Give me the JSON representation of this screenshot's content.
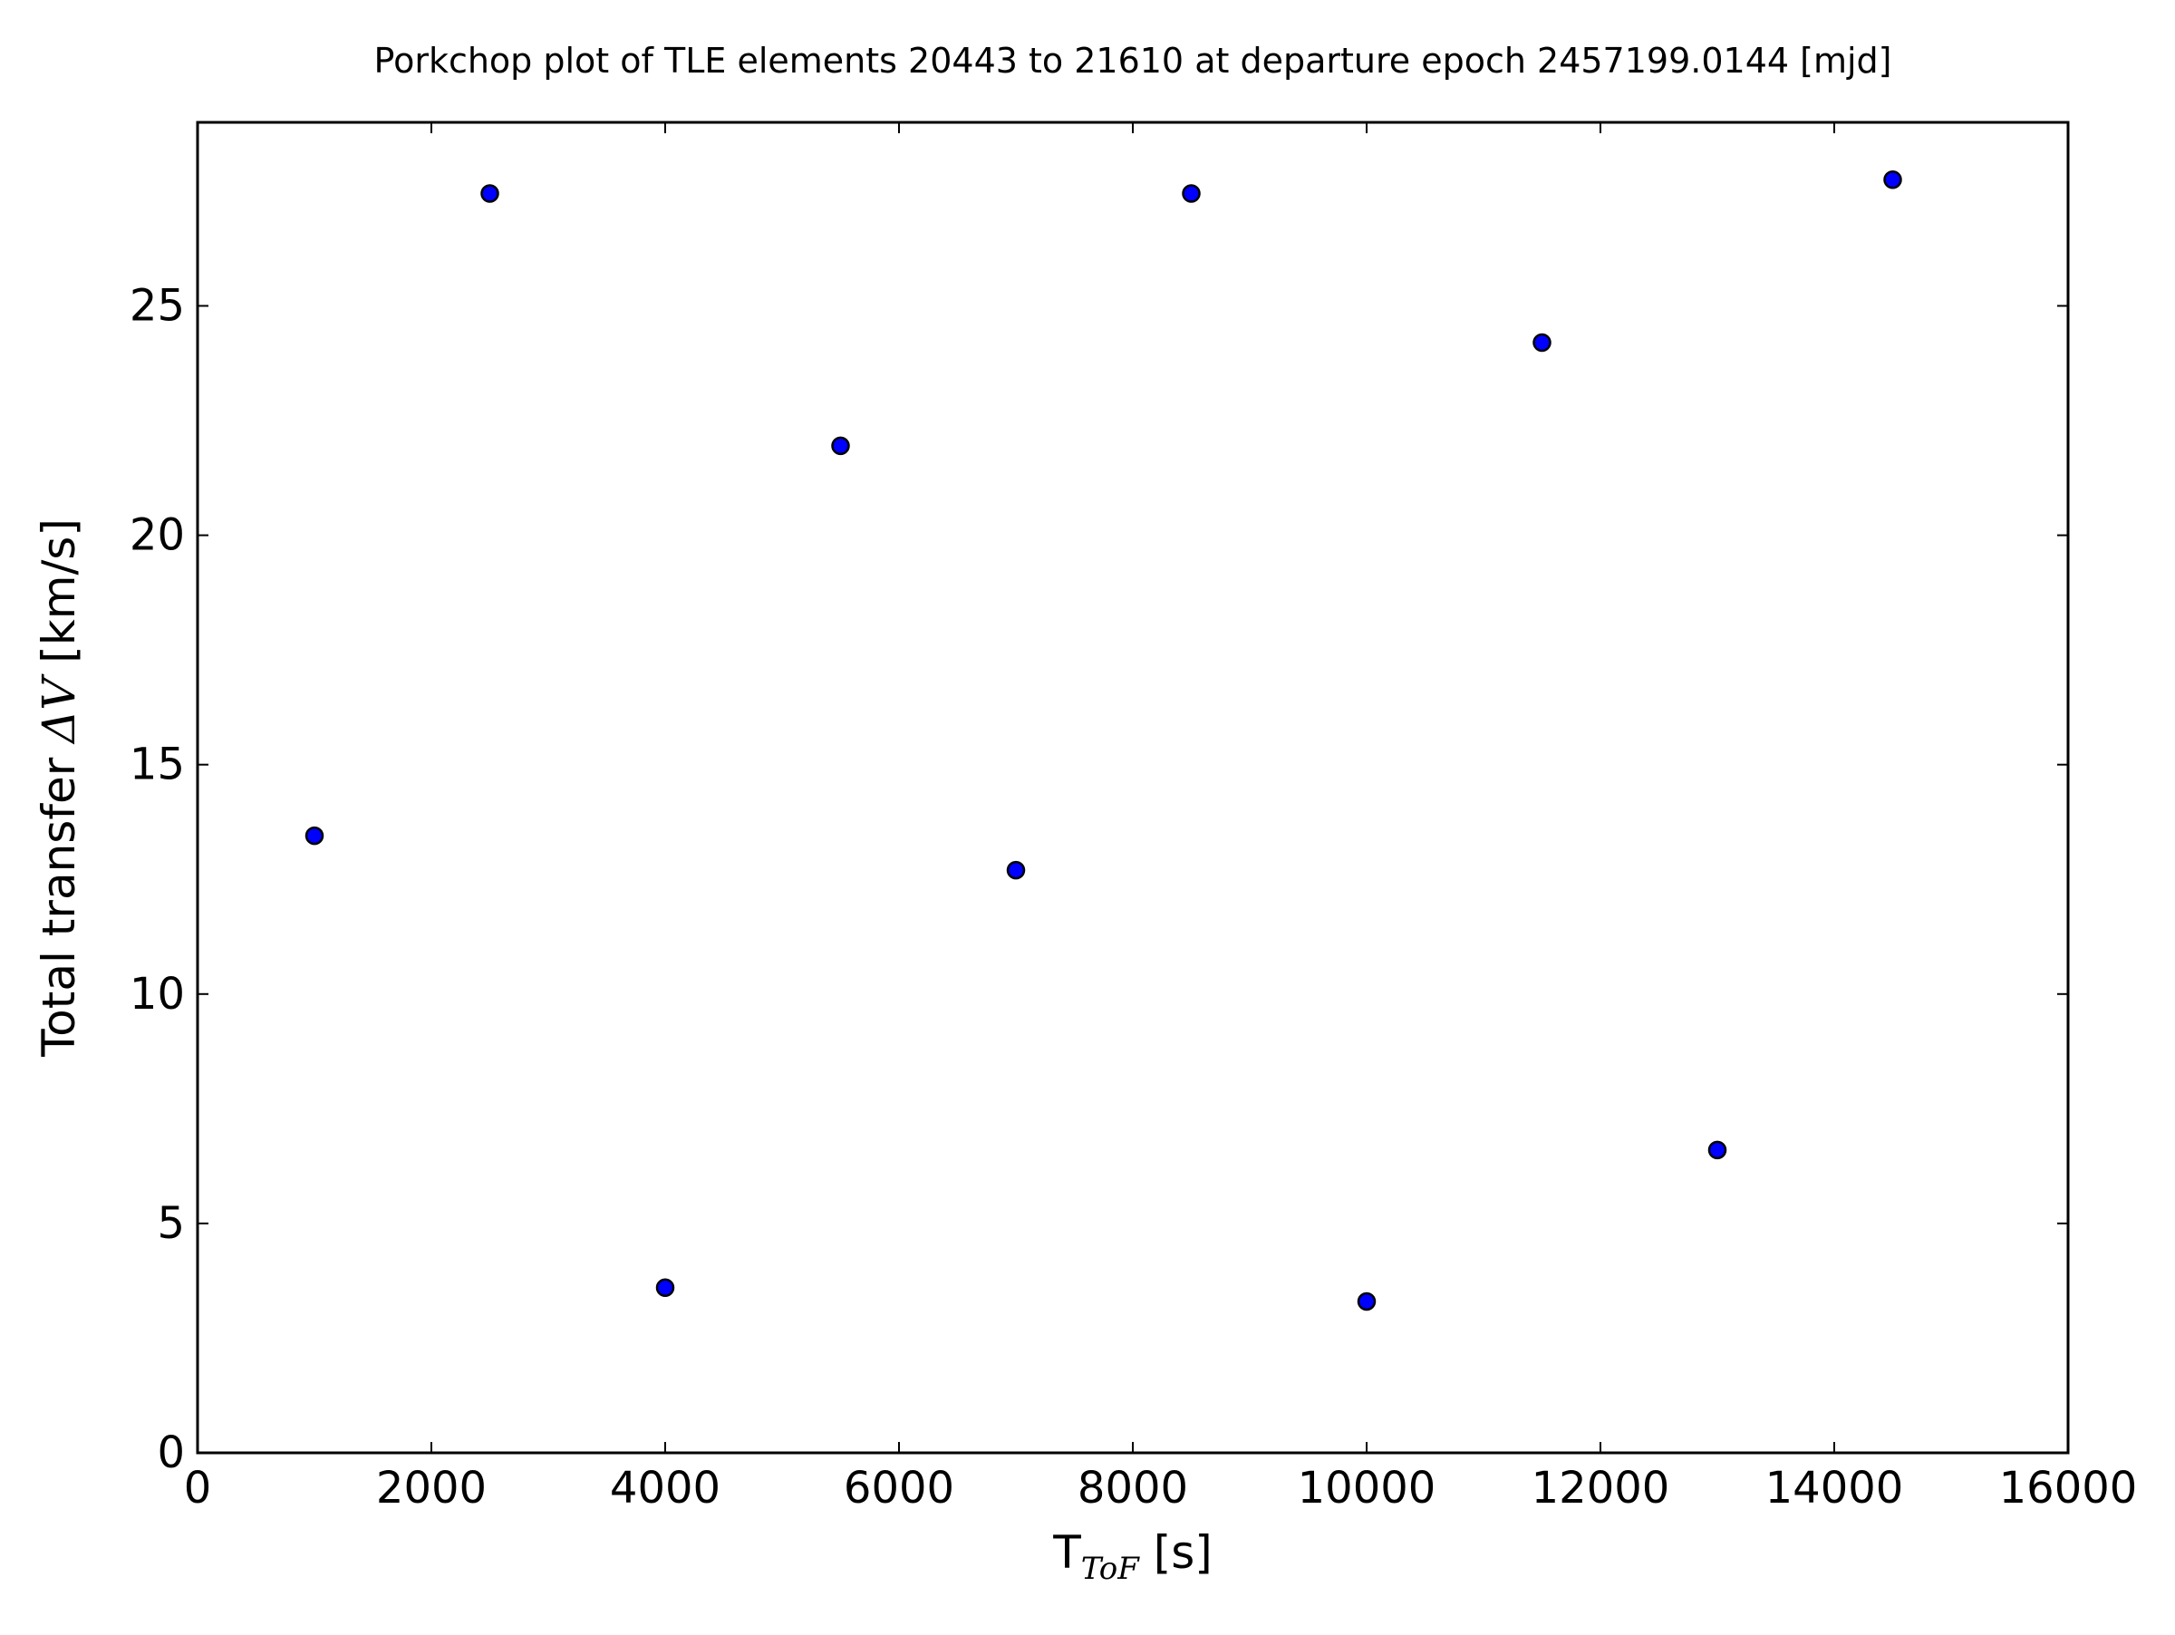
{
  "chart_data": {
    "type": "scatter",
    "title": "Porkchop plot of TLE elements 20443 to 21610 at departure epoch 2457199.0144 [mjd]",
    "xlabel": "T",
    "xlabel_subscript": "ToF",
    "xlabel_unit": " [s]",
    "ylabel": "Total transfer ",
    "ylabel_math": "ΔV",
    "ylabel_unit": " [km/s]",
    "xlim": [
      0,
      16000
    ],
    "ylim": [
      0,
      29
    ],
    "xticks": [
      0,
      2000,
      4000,
      6000,
      8000,
      10000,
      12000,
      14000,
      16000
    ],
    "xtick_labels": [
      "0",
      "2000",
      "4000",
      "6000",
      "8000",
      "10000",
      "12000",
      "14000",
      "16000"
    ],
    "yticks": [
      0,
      5,
      10,
      15,
      20,
      25
    ],
    "ytick_labels": [
      "0",
      "5",
      "10",
      "15",
      "20",
      "25"
    ],
    "grid": false,
    "marker_color": "#0000ff",
    "marker_edge_color": "#000000",
    "points": [
      {
        "x": 1000,
        "y": 13.45
      },
      {
        "x": 2500,
        "y": 27.45
      },
      {
        "x": 4000,
        "y": 3.6
      },
      {
        "x": 5500,
        "y": 21.95
      },
      {
        "x": 7000,
        "y": 12.7
      },
      {
        "x": 8500,
        "y": 27.45
      },
      {
        "x": 10000,
        "y": 3.3
      },
      {
        "x": 11500,
        "y": 24.2
      },
      {
        "x": 13000,
        "y": 6.6
      },
      {
        "x": 14500,
        "y": 27.75
      }
    ]
  }
}
